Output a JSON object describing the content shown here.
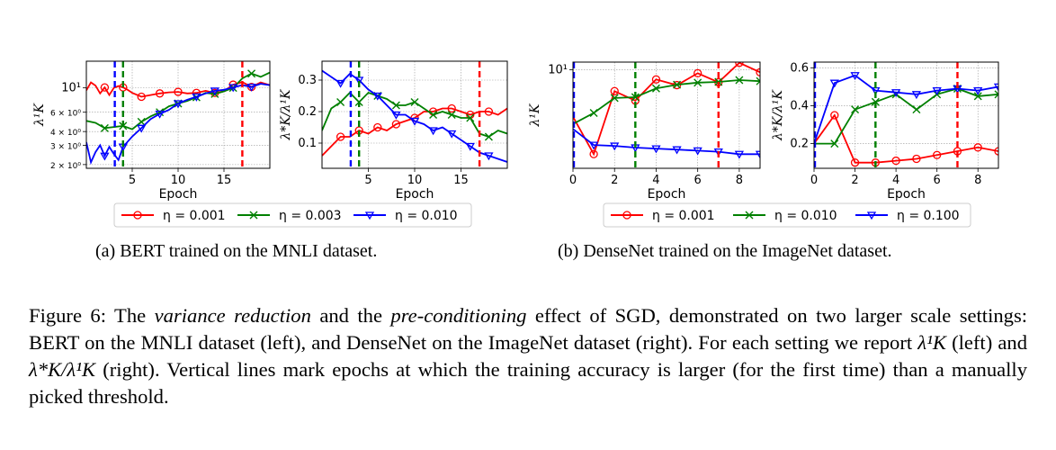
{
  "chart_data": [
    {
      "id": "a1",
      "type": "line",
      "xlabel": "Epoch",
      "ylabel": "λ¹K",
      "xlim": [
        0,
        20
      ],
      "ylim": [
        1.85,
        17.5
      ],
      "yscale": "log",
      "xticks": [
        5,
        10,
        15
      ],
      "xtick_labels": [
        "5",
        "10",
        "15"
      ],
      "yticks": [
        2,
        3,
        4,
        6,
        10
      ],
      "ytick_labels": [
        "2 × 10⁰",
        "3 × 10⁰",
        "4 × 10⁰",
        "6 × 10⁰",
        "10¹"
      ],
      "grid": true,
      "series": [
        {
          "name": "η = 0.001",
          "color": "#ff0000",
          "marker": "circle",
          "x": [
            0,
            0.5,
            1,
            1.5,
            2,
            2.5,
            3,
            3.5,
            4,
            4.5,
            5,
            6,
            7,
            8,
            9,
            10,
            11,
            12,
            13,
            14,
            15,
            16,
            17,
            18,
            19,
            20
          ],
          "y": [
            9.5,
            11.2,
            10.5,
            8.9,
            10.1,
            8.6,
            10.0,
            10.4,
            10.1,
            9.6,
            9.0,
            8.3,
            8.6,
            8.9,
            9.1,
            9.2,
            8.9,
            9.0,
            9.4,
            9.0,
            9.3,
            10.7,
            11.3,
            10.2,
            11.2,
            10.6
          ],
          "markers_x": [
            2,
            4,
            6,
            8,
            10,
            12,
            14,
            16,
            18
          ]
        },
        {
          "name": "η = 0.003",
          "color": "#008000",
          "marker": "x",
          "x": [
            0,
            1,
            2,
            3,
            4,
            5,
            6,
            7,
            8,
            9,
            10,
            11,
            12,
            13,
            14,
            15,
            16,
            17,
            18,
            19,
            20
          ],
          "y": [
            5.0,
            4.8,
            4.3,
            4.4,
            4.5,
            4.2,
            4.9,
            5.5,
            6.0,
            6.8,
            7.2,
            7.6,
            8.2,
            9.0,
            8.8,
            9.3,
            10.0,
            12.2,
            13.5,
            12.6,
            13.8
          ],
          "markers_x": [
            2,
            4,
            6,
            8,
            10,
            12,
            14,
            16,
            18
          ]
        },
        {
          "name": "η = 0.010",
          "color": "#0000ff",
          "marker": "triangle-down",
          "x": [
            0,
            0.5,
            1,
            1.5,
            2,
            2.5,
            3,
            3.5,
            4,
            5,
            6,
            7,
            8,
            9,
            10,
            11,
            12,
            13,
            14,
            15,
            16,
            17,
            18,
            19,
            20
          ],
          "y": [
            3.2,
            2.1,
            2.6,
            3.0,
            2.4,
            2.9,
            2.5,
            2.2,
            2.9,
            3.6,
            4.3,
            5.2,
            5.8,
            6.3,
            7.2,
            7.8,
            8.3,
            8.9,
            9.4,
            9.6,
            10.1,
            10.6,
            10.2,
            10.9,
            10.6
          ],
          "markers_x": [
            2,
            4,
            6,
            8,
            10,
            12,
            14,
            16,
            18
          ]
        }
      ],
      "vlines": [
        {
          "x": 3.1,
          "color": "#0000ff"
        },
        {
          "x": 4,
          "color": "#008000"
        },
        {
          "x": 17,
          "color": "#ff0000"
        }
      ]
    },
    {
      "id": "a2",
      "type": "line",
      "xlabel": "Epoch",
      "ylabel": "λ*K/λ¹K",
      "xlim": [
        0,
        20
      ],
      "ylim": [
        0.02,
        0.36
      ],
      "xticks": [
        5,
        10,
        15
      ],
      "xtick_labels": [
        "5",
        "10",
        "15"
      ],
      "yticks": [
        0.1,
        0.2,
        0.3
      ],
      "ytick_labels": [
        "0.1",
        "0.2",
        "0.3"
      ],
      "grid": true,
      "series": [
        {
          "name": "η = 0.001",
          "color": "#ff0000",
          "marker": "circle",
          "x": [
            0,
            1,
            2,
            3,
            4,
            5,
            6,
            7,
            8,
            9,
            10,
            11,
            12,
            13,
            14,
            15,
            16,
            17,
            18,
            19,
            20
          ],
          "y": [
            0.06,
            0.09,
            0.12,
            0.12,
            0.14,
            0.13,
            0.15,
            0.14,
            0.16,
            0.17,
            0.18,
            0.2,
            0.2,
            0.21,
            0.21,
            0.2,
            0.19,
            0.2,
            0.2,
            0.19,
            0.21
          ],
          "markers_x": [
            2,
            4,
            6,
            8,
            10,
            12,
            14,
            16,
            18
          ]
        },
        {
          "name": "η = 0.003",
          "color": "#008000",
          "marker": "x",
          "x": [
            0,
            1,
            2,
            3,
            4,
            5,
            6,
            7,
            8,
            9,
            10,
            11,
            12,
            13,
            14,
            15,
            16,
            17,
            18,
            19,
            20
          ],
          "y": [
            0.14,
            0.21,
            0.23,
            0.26,
            0.23,
            0.26,
            0.25,
            0.24,
            0.22,
            0.22,
            0.23,
            0.21,
            0.19,
            0.2,
            0.19,
            0.18,
            0.18,
            0.13,
            0.12,
            0.14,
            0.13
          ],
          "markers_x": [
            2,
            4,
            6,
            8,
            10,
            12,
            14,
            16,
            18
          ]
        },
        {
          "name": "η = 0.010",
          "color": "#0000ff",
          "marker": "triangle-down",
          "x": [
            0,
            1,
            2,
            3,
            4,
            5,
            6,
            7,
            8,
            9,
            10,
            11,
            12,
            13,
            14,
            15,
            16,
            17,
            18,
            19,
            20
          ],
          "y": [
            0.33,
            0.31,
            0.29,
            0.32,
            0.3,
            0.27,
            0.25,
            0.22,
            0.19,
            0.19,
            0.17,
            0.16,
            0.14,
            0.15,
            0.13,
            0.11,
            0.09,
            0.07,
            0.06,
            0.05,
            0.04
          ],
          "markers_x": [
            2,
            4,
            6,
            8,
            10,
            12,
            14,
            16,
            18
          ]
        }
      ],
      "vlines": [
        {
          "x": 3.1,
          "color": "#0000ff"
        },
        {
          "x": 4,
          "color": "#008000"
        },
        {
          "x": 17,
          "color": "#ff0000"
        }
      ]
    },
    {
      "id": "b1",
      "type": "line",
      "xlabel": "Epoch",
      "ylabel": "λ¹K",
      "xlim": [
        0,
        9
      ],
      "ylim": [
        0.08,
        14.5
      ],
      "yscale": "log",
      "xticks": [
        0,
        2,
        4,
        6,
        8
      ],
      "xtick_labels": [
        "0",
        "2",
        "4",
        "6",
        "8"
      ],
      "yticks": [
        10
      ],
      "ytick_labels": [
        "10¹"
      ],
      "grid": true,
      "series": [
        {
          "name": "η = 0.001",
          "color": "#ff0000",
          "marker": "circle",
          "x": [
            0,
            1,
            2,
            3,
            4,
            5,
            6,
            7,
            8,
            9
          ],
          "y": [
            1.0,
            0.16,
            3.5,
            2.2,
            6.2,
            4.7,
            8.4,
            5.4,
            14.0,
            8.8
          ],
          "markers_x": [
            1,
            2,
            3,
            4,
            5,
            6,
            7,
            8,
            9
          ]
        },
        {
          "name": "η = 0.010",
          "color": "#008000",
          "marker": "x",
          "x": [
            0,
            1,
            2,
            3,
            4,
            5,
            6,
            7,
            8,
            9
          ],
          "y": [
            0.7,
            1.2,
            2.5,
            2.6,
            4.0,
            4.8,
            5.3,
            5.5,
            6.0,
            5.7
          ],
          "markers_x": [
            1,
            2,
            3,
            4,
            5,
            6,
            7,
            8,
            9
          ]
        },
        {
          "name": "η = 0.100",
          "color": "#0000ff",
          "marker": "triangle-down",
          "x": [
            0,
            1,
            2,
            3,
            4,
            5,
            6,
            7,
            8,
            9
          ],
          "y": [
            0.55,
            0.25,
            0.24,
            0.22,
            0.21,
            0.2,
            0.19,
            0.18,
            0.16,
            0.16
          ],
          "markers_x": [
            1,
            2,
            3,
            4,
            5,
            6,
            7,
            8,
            9
          ]
        }
      ],
      "vlines": [
        {
          "x": 0,
          "color": "#0000ff"
        },
        {
          "x": 3,
          "color": "#008000"
        },
        {
          "x": 7,
          "color": "#ff0000"
        }
      ]
    },
    {
      "id": "b2",
      "type": "line",
      "xlabel": "Epoch",
      "ylabel": "λ*K/λ¹K",
      "xlim": [
        0,
        9
      ],
      "ylim": [
        0.07,
        0.63
      ],
      "xticks": [
        0,
        2,
        4,
        6,
        8
      ],
      "xtick_labels": [
        "0",
        "2",
        "4",
        "6",
        "8"
      ],
      "yticks": [
        0.2,
        0.4,
        0.6
      ],
      "ytick_labels": [
        "0.2",
        "0.4",
        "0.6"
      ],
      "grid": true,
      "series": [
        {
          "name": "η = 0.001",
          "color": "#ff0000",
          "marker": "circle",
          "x": [
            0,
            1,
            2,
            3,
            4,
            5,
            6,
            7,
            8,
            9
          ],
          "y": [
            0.2,
            0.35,
            0.1,
            0.1,
            0.11,
            0.12,
            0.14,
            0.16,
            0.18,
            0.16
          ],
          "markers_x": [
            1,
            2,
            3,
            4,
            5,
            6,
            7,
            8,
            9
          ]
        },
        {
          "name": "η = 0.010",
          "color": "#008000",
          "marker": "x",
          "x": [
            0,
            1,
            2,
            3,
            4,
            5,
            6,
            7,
            8,
            9
          ],
          "y": [
            0.2,
            0.2,
            0.38,
            0.42,
            0.46,
            0.38,
            0.46,
            0.49,
            0.45,
            0.46
          ],
          "markers_x": [
            1,
            2,
            3,
            4,
            5,
            6,
            7,
            8,
            9
          ]
        },
        {
          "name": "η = 0.100",
          "color": "#0000ff",
          "marker": "triangle-down",
          "x": [
            0,
            1,
            2,
            3,
            4,
            5,
            6,
            7,
            8,
            9
          ],
          "y": [
            0.2,
            0.52,
            0.56,
            0.48,
            0.47,
            0.46,
            0.48,
            0.49,
            0.48,
            0.5
          ],
          "markers_x": [
            1,
            2,
            3,
            4,
            5,
            6,
            7,
            8,
            9
          ]
        }
      ],
      "vlines": [
        {
          "x": 0,
          "color": "#0000ff"
        },
        {
          "x": 3,
          "color": "#008000"
        },
        {
          "x": 7,
          "color": "#ff0000"
        }
      ]
    }
  ],
  "legends": {
    "a": [
      "η = 0.001",
      "η = 0.003",
      "η = 0.010"
    ],
    "b": [
      "η = 0.001",
      "η = 0.010",
      "η = 0.100"
    ]
  },
  "subcaption_a": "(a)  BERT trained on the MNLI dataset.",
  "subcaption_b": "(b)  DenseNet trained on the ImageNet dataset.",
  "caption": {
    "label": "Figure 6:",
    "t1": " The ",
    "em1": "variance reduction",
    "t2": " and the ",
    "em2": "pre-conditioning",
    "t3": " effect of SGD, demonstrated on two larger scale settings: BERT on the MNLI dataset (left), and DenseNet on the ImageNet dataset (right). For each setting we report ",
    "sym1": "λ¹K",
    "t4": " (left) and ",
    "sym2": "λ*K/λ¹K",
    "t5": " (right). Vertical lines mark epochs at which the training accuracy is larger (for the first time) than a manually picked threshold."
  }
}
